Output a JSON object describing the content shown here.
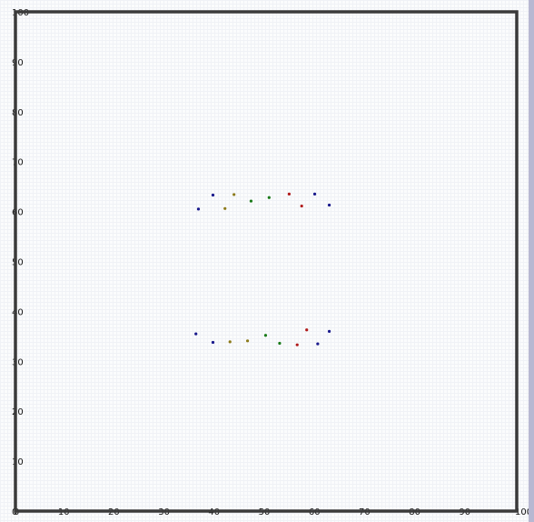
{
  "chart_data": {
    "type": "scatter",
    "title": "",
    "xlabel": "",
    "ylabel": "",
    "xlim": [
      0,
      100
    ],
    "ylim": [
      0,
      100
    ],
    "grid": false,
    "x_ticks": [
      "0",
      "10",
      "20",
      "30",
      "40",
      "50",
      "60",
      "70",
      "80",
      "90",
      "100"
    ],
    "y_ticks": [
      "0",
      "10",
      "20",
      "30",
      "40",
      "50",
      "60",
      "70",
      "80",
      "90",
      "100"
    ],
    "points": [
      {
        "x": 36.5,
        "y": 60.5,
        "color": "#1a1a8c"
      },
      {
        "x": 39.4,
        "y": 63.3,
        "color": "#1a1a8c"
      },
      {
        "x": 41.8,
        "y": 60.6,
        "color": "#8c7a1a"
      },
      {
        "x": 43.6,
        "y": 63.4,
        "color": "#8c7a1a"
      },
      {
        "x": 47.0,
        "y": 62.1,
        "color": "#1a7a1a"
      },
      {
        "x": 50.6,
        "y": 62.8,
        "color": "#1a7a1a"
      },
      {
        "x": 54.6,
        "y": 63.5,
        "color": "#b01a1a"
      },
      {
        "x": 57.1,
        "y": 61.1,
        "color": "#b01a1a"
      },
      {
        "x": 59.7,
        "y": 63.5,
        "color": "#1a1a8c"
      },
      {
        "x": 62.6,
        "y": 61.3,
        "color": "#1a1a8c"
      },
      {
        "x": 36.0,
        "y": 35.5,
        "color": "#1a1a8c"
      },
      {
        "x": 39.4,
        "y": 33.8,
        "color": "#1a1a8c"
      },
      {
        "x": 42.8,
        "y": 33.9,
        "color": "#8c7a1a"
      },
      {
        "x": 46.3,
        "y": 34.1,
        "color": "#8c7a1a"
      },
      {
        "x": 49.9,
        "y": 35.2,
        "color": "#1a7a1a"
      },
      {
        "x": 52.7,
        "y": 33.6,
        "color": "#1a7a1a"
      },
      {
        "x": 56.2,
        "y": 33.3,
        "color": "#b01a1a"
      },
      {
        "x": 58.1,
        "y": 36.3,
        "color": "#b01a1a"
      },
      {
        "x": 60.3,
        "y": 33.5,
        "color": "#1a1a8c"
      },
      {
        "x": 62.6,
        "y": 36.0,
        "color": "#1a1a8c"
      }
    ],
    "frame_color": "#3a3a3a"
  }
}
